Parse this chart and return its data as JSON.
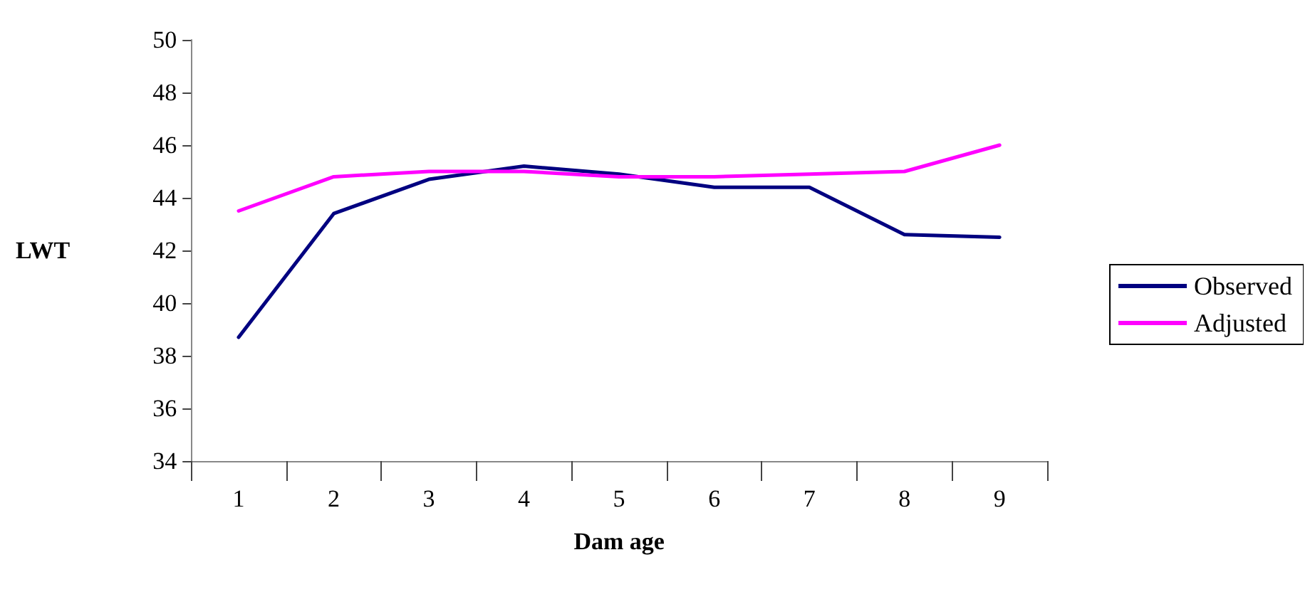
{
  "chart_data": {
    "type": "line",
    "xlabel": "Dam age",
    "ylabel": "LWT",
    "categories": [
      "1",
      "2",
      "3",
      "4",
      "5",
      "6",
      "7",
      "8",
      "9"
    ],
    "series": [
      {
        "name": "Observed",
        "color": "#000080",
        "values": [
          38.7,
          43.4,
          44.7,
          45.2,
          44.9,
          44.4,
          44.4,
          42.6,
          42.5
        ]
      },
      {
        "name": "Adjusted",
        "color": "#ff00ff",
        "values": [
          43.5,
          44.8,
          45.0,
          45.0,
          44.8,
          44.8,
          44.9,
          45.0,
          46.0
        ]
      }
    ],
    "ylim": [
      34,
      50
    ],
    "yticks": [
      34,
      36,
      38,
      40,
      42,
      44,
      46,
      48,
      50
    ],
    "grid": false,
    "legend": "right",
    "marker": "none",
    "line_style": "solid"
  }
}
